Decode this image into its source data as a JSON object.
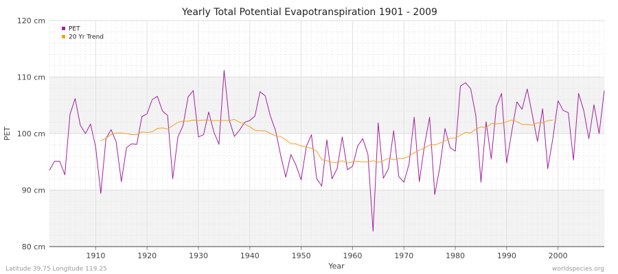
{
  "chart_data": {
    "type": "line",
    "title": "Yearly Total Potential Evapotranspiration 1901 - 2009",
    "xlabel": "Year",
    "ylabel": "PET",
    "xlim": [
      1901,
      2009
    ],
    "ylim": [
      80,
      120
    ],
    "x_ticks": [
      1910,
      1920,
      1930,
      1940,
      1950,
      1960,
      1970,
      1980,
      1990,
      2000
    ],
    "y_ticks": [
      {
        "value": 80,
        "label": "80 cm"
      },
      {
        "value": 90,
        "label": "90 cm"
      },
      {
        "value": 100,
        "label": "100 cm"
      },
      {
        "value": 110,
        "label": "110 cm"
      },
      {
        "value": 120,
        "label": "120 cm"
      }
    ],
    "grid": true,
    "legend_position": "top-left",
    "series": [
      {
        "name": "PET",
        "color": "#a020a0",
        "x_start": 1901,
        "values": [
          93.5,
          95.1,
          95.1,
          92.7,
          103.4,
          106.2,
          101.5,
          100.0,
          101.7,
          97.6,
          89.4,
          99.1,
          100.7,
          98.5,
          91.5,
          97.5,
          98.2,
          98.1,
          103.0,
          103.5,
          106.0,
          106.6,
          104.0,
          103.2,
          92.0,
          99.4,
          101.4,
          106.5,
          107.6,
          99.4,
          99.8,
          103.8,
          100.3,
          98.1,
          111.2,
          102.4,
          99.5,
          100.6,
          102.0,
          102.3,
          103.1,
          107.4,
          106.7,
          103.1,
          100.6,
          96.2,
          92.3,
          96.3,
          94.4,
          91.8,
          97.7,
          99.8,
          92.1,
          90.7,
          98.9,
          92.0,
          93.8,
          99.4,
          93.6,
          94.2,
          97.8,
          99.1,
          96.3,
          82.7,
          101.9,
          92.1,
          93.8,
          100.5,
          92.4,
          91.4,
          94.6,
          102.9,
          91.5,
          97.9,
          102.9,
          89.2,
          94.1,
          100.9,
          97.5,
          96.9,
          108.4,
          109.0,
          107.9,
          103.2,
          91.4,
          102.1,
          95.5,
          104.8,
          107.1,
          94.8,
          100.4,
          105.6,
          104.3,
          107.9,
          103.3,
          98.6,
          104.4,
          93.8,
          99.2,
          105.8,
          104.1,
          103.7,
          95.3,
          107.1,
          104.1,
          99.1,
          105.1,
          100.0,
          107.6
        ]
      },
      {
        "name": "20 Yr Trend",
        "color": "#f5a020",
        "x_start": 1911,
        "values": [
          98.7,
          99.2,
          99.8,
          100.1,
          100.1,
          100.0,
          99.8,
          99.8,
          100.3,
          100.2,
          100.3,
          100.9,
          101.0,
          100.8,
          101.4,
          102.0,
          102.2,
          102.2,
          102.4,
          102.3,
          102.4,
          102.4,
          102.3,
          102.3,
          102.3,
          102.3,
          102.5,
          102.0,
          101.7,
          101.2,
          100.6,
          100.5,
          100.5,
          100.0,
          99.6,
          99.5,
          98.9,
          98.2,
          98.2,
          97.8,
          97.6,
          97.4,
          96.9,
          95.4,
          95.2,
          94.9,
          94.9,
          95.2,
          94.8,
          95.0,
          95.1,
          95.0,
          95.0,
          95.2,
          94.9,
          95.2,
          95.6,
          95.4,
          95.6,
          95.6,
          96.0,
          96.6,
          97.1,
          97.4,
          98.0,
          98.0,
          98.3,
          98.7,
          99.2,
          99.2,
          99.7,
          100.2,
          100.1,
          100.8,
          101.2,
          101.0,
          101.8,
          101.7,
          101.8,
          102.1,
          102.4,
          102.1,
          101.6,
          101.6,
          101.5,
          101.9,
          101.9,
          102.3,
          102.4
        ]
      }
    ]
  },
  "footer": {
    "location": "Latitude 39.75 Longitude 119.25",
    "credit": "worldspecies.org"
  }
}
